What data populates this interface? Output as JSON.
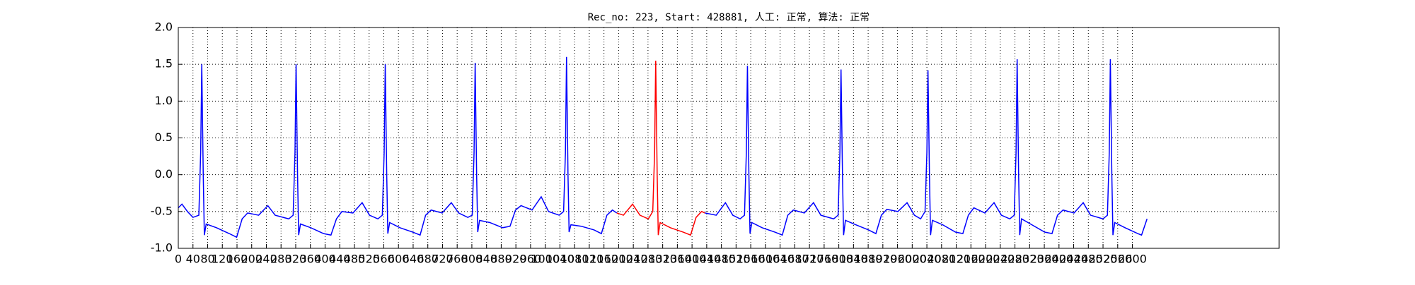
{
  "chart_data": {
    "type": "line",
    "title": "Rec_no: 223, Start: 428881, 人工: 正常, 算法: 正常",
    "xlim": [
      0,
      3000
    ],
    "xticks": [
      0,
      40,
      80,
      120,
      160,
      200,
      240,
      280,
      320,
      360,
      400,
      440,
      480,
      520,
      560,
      600,
      640,
      680,
      720,
      760,
      800,
      840,
      880,
      920,
      960,
      1000,
      1040,
      1080,
      1120,
      1160,
      1200,
      1240,
      1280,
      1320,
      1360,
      1400,
      1440,
      1480,
      1520,
      1560,
      1600,
      1640,
      1680,
      1720,
      1760,
      1800,
      1840,
      1880,
      1920,
      1960,
      2000,
      2040,
      2080,
      2120,
      2160,
      2200,
      2240,
      2280,
      2320,
      2360,
      2400,
      2440,
      2480,
      2520,
      2560,
      2600
    ],
    "ylim": [
      -1,
      2
    ],
    "yticks": [
      {
        "value": -1,
        "label": "-1.0"
      },
      {
        "value": -0.5,
        "label": "-0.5"
      },
      {
        "value": 0,
        "label": "0.0"
      },
      {
        "value": 0.5,
        "label": "0.5"
      },
      {
        "value": 1,
        "label": "1.0"
      },
      {
        "value": 1.5,
        "label": "1.5"
      },
      {
        "value": 2,
        "label": "2.0"
      }
    ],
    "grid": true,
    "series": [
      {
        "color": "#0000ff",
        "x": [
          0,
          10,
          25,
          40,
          56,
          61,
          64,
          68,
          71,
          76,
          104,
          139,
          159,
          174,
          189,
          219,
          244,
          264,
          301,
          313,
          318,
          321,
          325,
          328,
          333,
          361,
          396,
          416,
          431,
          446,
          476,
          501,
          521,
          544,
          556,
          561,
          564,
          568,
          571,
          576,
          604,
          639,
          659,
          674,
          689,
          719,
          744,
          764,
          789,
          801,
          806,
          809,
          813,
          816,
          821,
          849,
          884,
          904,
          919,
          934,
          964,
          989,
          1009,
          1038,
          1050,
          1055,
          1058,
          1062,
          1065,
          1070,
          1098,
          1133,
          1153,
          1168,
          1183,
          1195
        ],
        "values": [
          -0.45,
          -0.4,
          -0.5,
          -0.58,
          -0.55,
          0.3,
          1.5,
          0,
          -0.82,
          -0.67,
          -0.72,
          -0.8,
          -0.85,
          -0.6,
          -0.52,
          -0.55,
          -0.42,
          -0.55,
          -0.6,
          -0.55,
          0.3,
          1.5,
          0,
          -0.82,
          -0.67,
          -0.72,
          -0.8,
          -0.82,
          -0.6,
          -0.5,
          -0.52,
          -0.38,
          -0.55,
          -0.6,
          -0.55,
          0.3,
          1.5,
          0,
          -0.8,
          -0.65,
          -0.72,
          -0.78,
          -0.82,
          -0.55,
          -0.48,
          -0.52,
          -0.38,
          -0.52,
          -0.58,
          -0.55,
          0.3,
          1.52,
          0,
          -0.78,
          -0.62,
          -0.65,
          -0.72,
          -0.7,
          -0.48,
          -0.42,
          -0.48,
          -0.3,
          -0.5,
          -0.55,
          -0.5,
          0.3,
          1.6,
          0,
          -0.78,
          -0.68,
          -0.7,
          -0.75,
          -0.8,
          -0.55,
          -0.48,
          -0.52
        ]
      },
      {
        "color": "#ff0000",
        "x": [
          1195,
          1213,
          1238,
          1258,
          1281,
          1293,
          1298,
          1301,
          1305,
          1308,
          1313,
          1341,
          1376,
          1396,
          1411,
          1426,
          1435
        ],
        "values": [
          -0.52,
          -0.55,
          -0.4,
          -0.55,
          -0.6,
          -0.5,
          0.3,
          1.55,
          0,
          -0.82,
          -0.65,
          -0.72,
          -0.78,
          -0.82,
          -0.58,
          -0.5,
          -0.52
        ]
      },
      {
        "color": "#0000ff",
        "x": [
          1435,
          1466,
          1491,
          1511,
          1531,
          1543,
          1548,
          1551,
          1555,
          1558,
          1563,
          1591,
          1626,
          1646,
          1661,
          1676,
          1706,
          1731,
          1751,
          1786,
          1798,
          1803,
          1806,
          1810,
          1813,
          1818,
          1846,
          1881,
          1901,
          1916,
          1931,
          1961,
          1986,
          2006,
          2023,
          2035,
          2040,
          2043,
          2047,
          2050,
          2055,
          2083,
          2118,
          2138,
          2153,
          2168,
          2198,
          2223,
          2243,
          2266,
          2278,
          2283,
          2286,
          2290,
          2293,
          2298,
          2326,
          2361,
          2381,
          2396,
          2411,
          2441,
          2466,
          2486,
          2520,
          2532,
          2537,
          2540,
          2544,
          2547,
          2552,
          2580,
          2615,
          2625,
          2640
        ],
        "values": [
          -0.52,
          -0.55,
          -0.38,
          -0.55,
          -0.6,
          -0.55,
          0.3,
          1.48,
          0,
          -0.8,
          -0.65,
          -0.72,
          -0.78,
          -0.82,
          -0.55,
          -0.48,
          -0.52,
          -0.38,
          -0.55,
          -0.6,
          -0.55,
          0.3,
          1.43,
          0,
          -0.82,
          -0.62,
          -0.68,
          -0.75,
          -0.8,
          -0.55,
          -0.47,
          -0.5,
          -0.38,
          -0.55,
          -0.6,
          -0.5,
          0.3,
          1.42,
          0,
          -0.82,
          -0.62,
          -0.68,
          -0.78,
          -0.8,
          -0.55,
          -0.45,
          -0.52,
          -0.38,
          -0.55,
          -0.6,
          -0.55,
          0.3,
          1.57,
          0,
          -0.82,
          -0.6,
          -0.68,
          -0.78,
          -0.8,
          -0.55,
          -0.48,
          -0.52,
          -0.38,
          -0.55,
          -0.6,
          -0.55,
          0.3,
          1.57,
          0,
          -0.82,
          -0.65,
          -0.72,
          -0.8,
          -0.82,
          -0.6
        ]
      }
    ]
  }
}
